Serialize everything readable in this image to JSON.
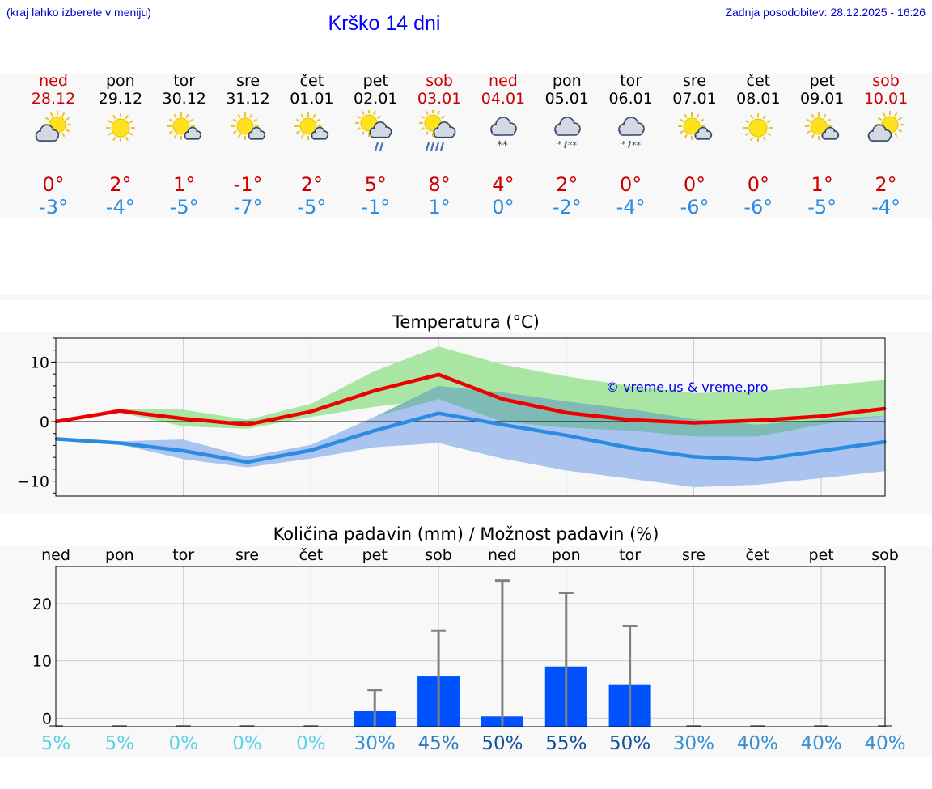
{
  "header": {
    "menu_hint": "(kraj lahko izberete v meniju)",
    "title": "Krško 14 dni",
    "updated": "Zadnja posodobitev: 28.12.2025 - 16:26"
  },
  "colors": {
    "weekend_red": "#cc0000",
    "max_temp": "#ee0000",
    "min_temp": "#2a8be0",
    "max_band": "#a9e6a3",
    "min_band": "#aac4ef",
    "bar": "#0052ff",
    "error_bar": "#808080",
    "title_blue": "#0000ff"
  },
  "days": [
    {
      "name": "ned",
      "date": "28.12",
      "weekend": true,
      "icon": "sun-cloud-icon",
      "tmax": "0°",
      "tmin": "-3°"
    },
    {
      "name": "pon",
      "date": "29.12",
      "weekend": false,
      "icon": "sun-icon",
      "tmax": "2°",
      "tmin": "-4°"
    },
    {
      "name": "tor",
      "date": "30.12",
      "weekend": false,
      "icon": "sun-small-cloud-icon",
      "tmax": "1°",
      "tmin": "-5°"
    },
    {
      "name": "sre",
      "date": "31.12",
      "weekend": false,
      "icon": "sun-small-cloud-icon",
      "tmax": "-1°",
      "tmin": "-7°"
    },
    {
      "name": "čet",
      "date": "01.01",
      "weekend": false,
      "icon": "sun-small-cloud-icon",
      "tmax": "2°",
      "tmin": "-5°"
    },
    {
      "name": "pet",
      "date": "02.01",
      "weekend": false,
      "icon": "sun-cloud-rain-icon",
      "tmax": "5°",
      "tmin": "-1°"
    },
    {
      "name": "sob",
      "date": "03.01",
      "weekend": true,
      "icon": "sun-cloud-heavy-rain-icon",
      "tmax": "8°",
      "tmin": "1°"
    },
    {
      "name": "ned",
      "date": "04.01",
      "weekend": true,
      "icon": "cloud-snow-icon",
      "tmax": "4°",
      "tmin": "0°"
    },
    {
      "name": "pon",
      "date": "05.01",
      "weekend": false,
      "icon": "cloud-sleet-icon",
      "tmax": "2°",
      "tmin": "-2°"
    },
    {
      "name": "tor",
      "date": "06.01",
      "weekend": false,
      "icon": "cloud-sleet-icon",
      "tmax": "0°",
      "tmin": "-4°"
    },
    {
      "name": "sre",
      "date": "07.01",
      "weekend": false,
      "icon": "sun-small-cloud-icon",
      "tmax": "0°",
      "tmin": "-6°"
    },
    {
      "name": "čet",
      "date": "08.01",
      "weekend": false,
      "icon": "sun-icon",
      "tmax": "0°",
      "tmin": "-6°"
    },
    {
      "name": "pet",
      "date": "09.01",
      "weekend": false,
      "icon": "sun-small-cloud-icon",
      "tmax": "1°",
      "tmin": "-5°"
    },
    {
      "name": "sob",
      "date": "10.01",
      "weekend": true,
      "icon": "sun-cloud-icon",
      "tmax": "2°",
      "tmin": "-4°"
    }
  ],
  "chart_data": [
    {
      "type": "line",
      "title": "Temperatura (°C)",
      "watermark": "© vreme.us & vreme.pro",
      "ylim": [
        -12.5,
        14
      ],
      "yticks": [
        -10,
        0,
        10
      ],
      "x": [
        0,
        1,
        2,
        3,
        4,
        5,
        6,
        7,
        8,
        9,
        10,
        11,
        12,
        13
      ],
      "series": [
        {
          "name": "max",
          "values": [
            0,
            1.8,
            0.5,
            -0.5,
            1.7,
            5.2,
            7.9,
            3.8,
            1.5,
            0.3,
            -0.2,
            0.2,
            0.9,
            2.2
          ]
        },
        {
          "name": "min",
          "values": [
            -2.9,
            -3.6,
            -4.9,
            -6.8,
            -4.8,
            -1.5,
            1.4,
            -0.5,
            -2.3,
            -4.4,
            -5.9,
            -6.4,
            -4.9,
            -3.4
          ]
        },
        {
          "name": "max_range_low",
          "values": [
            0,
            1.5,
            -0.8,
            -1.2,
            0.8,
            2.5,
            3.8,
            0.0,
            -1.0,
            -1.5,
            -2.5,
            -2.5,
            -0.5,
            1.0
          ]
        },
        {
          "name": "max_range_high",
          "values": [
            0,
            2.2,
            2.0,
            0.3,
            3.0,
            8.5,
            12.6,
            9.6,
            7.6,
            6.0,
            4.8,
            5.1,
            6.0,
            7.0
          ]
        },
        {
          "name": "min_range_low",
          "values": [
            -2.9,
            -3.8,
            -6.3,
            -7.7,
            -6.2,
            -4.3,
            -3.6,
            -6.2,
            -8.2,
            -9.6,
            -11.0,
            -10.6,
            -9.5,
            -8.3
          ]
        },
        {
          "name": "min_range_high",
          "values": [
            -2.9,
            -3.3,
            -3.0,
            -5.9,
            -3.9,
            0.8,
            6.0,
            4.9,
            3.4,
            2.1,
            0.4,
            -0.5,
            0.3,
            1.0
          ]
        }
      ]
    },
    {
      "type": "bar",
      "title": "Količina padavin (mm) / Možnost padavin (%)",
      "categories": [
        "ned",
        "pon",
        "tor",
        "sre",
        "čet",
        "pet",
        "sob",
        "ned",
        "pon",
        "tor",
        "sre",
        "čet",
        "pet",
        "sob"
      ],
      "ylim": [
        -1.5,
        26.5
      ],
      "yticks": [
        0,
        10,
        20
      ],
      "values": [
        0,
        0,
        0,
        0,
        0,
        1.3,
        7.4,
        0.3,
        9.0,
        5.9,
        0,
        0,
        0,
        0
      ],
      "error_high": [
        0,
        0,
        0,
        0,
        0,
        4.9,
        15.3,
        24.0,
        21.9,
        16.1,
        0,
        0,
        0,
        0
      ],
      "probabilities": [
        "5%",
        "5%",
        "0%",
        "0%",
        "0%",
        "30%",
        "45%",
        "50%",
        "55%",
        "50%",
        "30%",
        "40%",
        "40%",
        "40%"
      ],
      "probability_colors": [
        "#5ad2e8",
        "#5ad2e8",
        "#5ad2e8",
        "#5ad2e8",
        "#5ad2e8",
        "#3a8fd0",
        "#2e78c0",
        "#1052a0",
        "#0a4a98",
        "#1052a0",
        "#3a8fd0",
        "#3a8fd0",
        "#3a8fd0",
        "#3a8fd0"
      ]
    }
  ]
}
